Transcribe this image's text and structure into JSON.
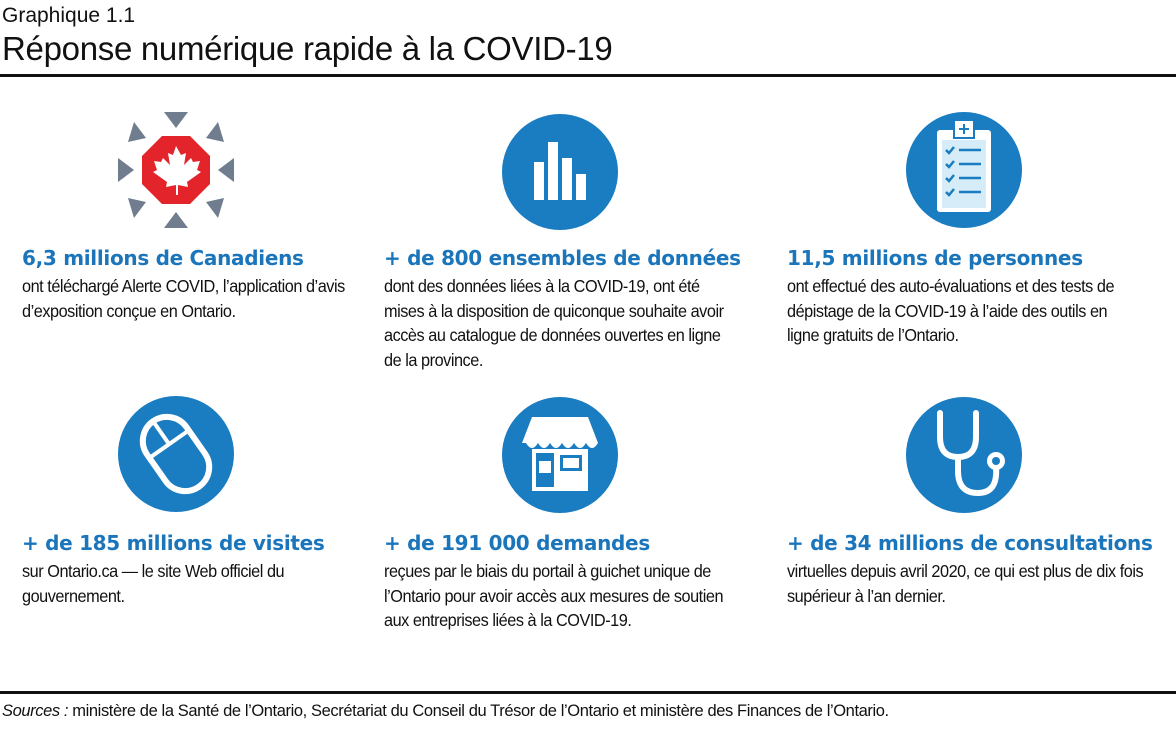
{
  "header": {
    "label": "Graphique 1.1",
    "title": "Réponse numérique rapide à la COVID-19"
  },
  "colors": {
    "accent": "#1b75bb",
    "icon_blue": "#1a7cc1",
    "alert_red": "#e3242b",
    "arrow_gray": "#6f7d8f"
  },
  "items": [
    {
      "icon": "canada-alert-icon",
      "heading": "6,3 millions de Canadiens",
      "body": "ont téléchargé Alerte COVID, l’application d’avis d’exposition conçue en Ontario."
    },
    {
      "icon": "bar-chart-icon",
      "heading": "+ de 800 ensembles de données",
      "body": "dont des données liées à la COVID-19, ont été mises à la disposition de quiconque souhaite avoir accès au catalogue de données ouvertes en ligne de la province."
    },
    {
      "icon": "clipboard-checklist-icon",
      "heading": "11,5 millions de personnes",
      "body": "ont effectué des auto-évaluations et des tests de dépistage de la COVID-19 à l’aide des outils en ligne gratuits de l’Ontario."
    },
    {
      "icon": "mouse-icon",
      "heading": "+ de 185 millions de visites",
      "body": "sur Ontario.ca — le site Web officiel du gouvernement."
    },
    {
      "icon": "storefront-icon",
      "heading": "+ de 191 000 demandes",
      "body": "reçues par le biais du portail à guichet unique de l’Ontario pour avoir accès aux mesures de soutien aux entreprises liées à la COVID-19."
    },
    {
      "icon": "stethoscope-icon",
      "heading": "+ de 34 millions de consultations",
      "body": "virtuelles depuis avril 2020, ce qui est plus de dix fois supérieur à l’an dernier."
    }
  ],
  "footer": {
    "sources_label": "Sources :",
    "sources_text": " ministère de la Santé de l’Ontario, Secrétariat du Conseil du Trésor de l’Ontario et ministère des Finances de l’Ontario."
  }
}
